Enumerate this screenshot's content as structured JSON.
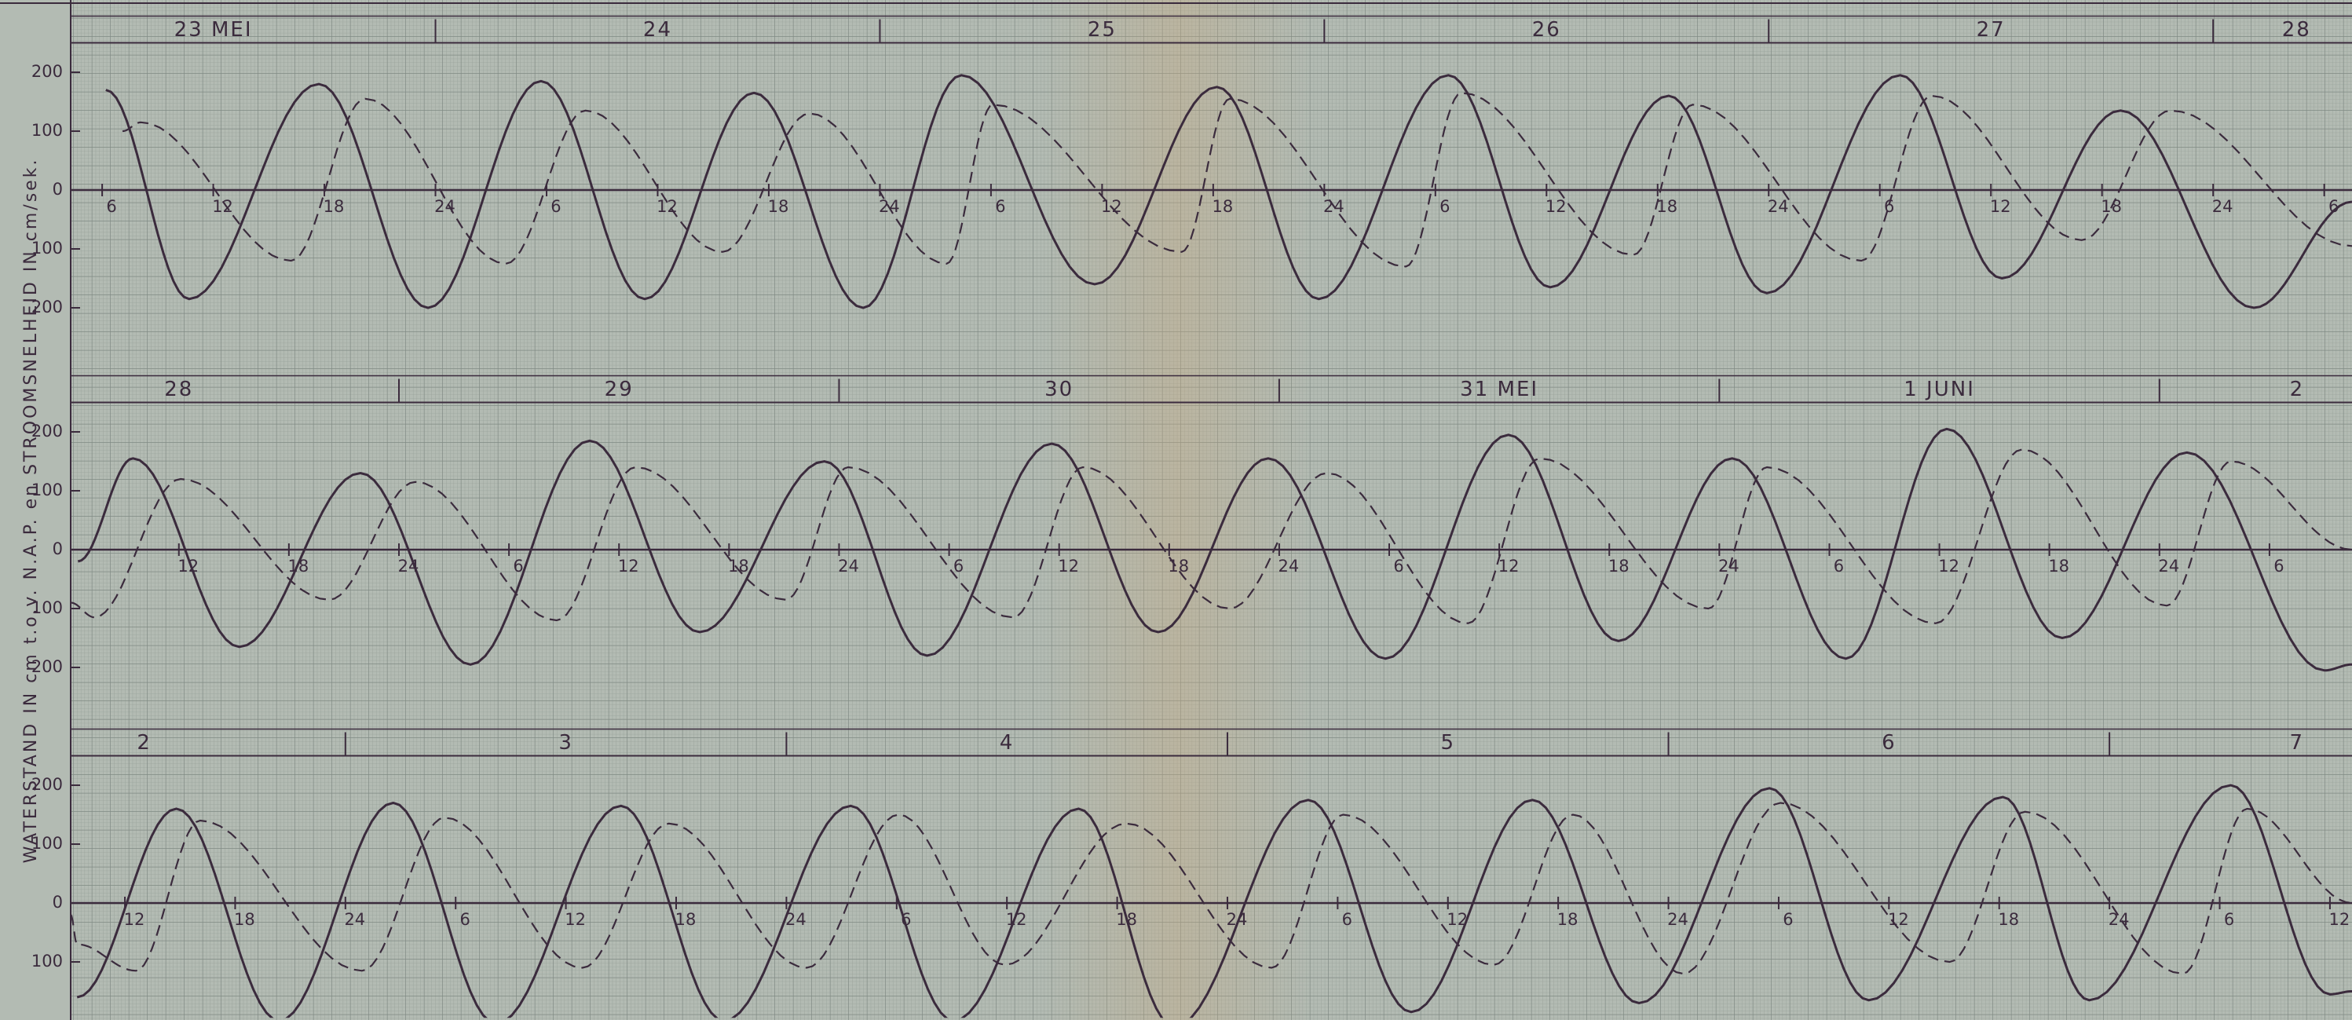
{
  "y_label": "WATERSTAND IN cm t.o.v. N.A.P. en STROOMSNELHEID IN cm/sek.",
  "chart_data": [
    {
      "type": "line",
      "color": "#3b2b3d",
      "grid": true,
      "days": [
        "23 MEI",
        "24",
        "25",
        "26",
        "27",
        "28"
      ],
      "xlim": [
        4.3,
        127.5
      ],
      "ylim": [
        -250,
        250
      ],
      "yticks": [
        {
          "value": -200,
          "label": "200"
        },
        {
          "value": -100,
          "label": "100"
        },
        0,
        100,
        200
      ],
      "xticks": [
        6,
        12,
        18,
        24,
        {
          "value": 30,
          "label": "6"
        },
        {
          "value": 36,
          "label": "12"
        },
        {
          "value": 42,
          "label": "18"
        },
        {
          "value": 48,
          "label": "24"
        },
        {
          "value": 54,
          "label": "6"
        },
        {
          "value": 60,
          "label": "12"
        },
        {
          "value": 66,
          "label": "18"
        },
        {
          "value": 72,
          "label": "24"
        },
        {
          "value": 78,
          "label": "6"
        },
        {
          "value": 84,
          "label": "12"
        },
        {
          "value": 90,
          "label": "18"
        },
        {
          "value": 96,
          "label": "24"
        },
        {
          "value": 102,
          "label": "6"
        },
        {
          "value": 108,
          "label": "12"
        },
        {
          "value": 114,
          "label": "18"
        },
        {
          "value": 120,
          "label": "24"
        },
        {
          "value": 126,
          "label": "6"
        }
      ],
      "series": [
        {
          "style": "solid",
          "x": [
            6.2,
            10.7,
            17.7,
            23.6,
            29.7,
            35.3,
            41.2,
            47.1,
            52.4,
            59.6,
            66.2,
            71.7,
            78.7,
            84.2,
            90.6,
            95.9,
            103.1,
            108.6,
            115,
            122.2,
            127.5
          ],
          "values": [
            170,
            -185,
            180,
            -200,
            185,
            -185,
            165,
            -200,
            195,
            -160,
            175,
            -185,
            195,
            -165,
            160,
            -175,
            195,
            -150,
            135,
            -200,
            -20
          ]
        },
        {
          "style": "dashed",
          "x": [
            7.1,
            8.1,
            16.2,
            20.2,
            27.8,
            32.1,
            39.5,
            44.2,
            51.6,
            54.1,
            64.3,
            66.9,
            76.4,
            79.4,
            88.7,
            91.9,
            101,
            104.8,
            112.9,
            117.7,
            127.5
          ],
          "values": [
            100,
            115,
            -120,
            155,
            -125,
            135,
            -105,
            130,
            -125,
            145,
            -105,
            155,
            -130,
            165,
            -110,
            145,
            -120,
            160,
            -85,
            135,
            -95
          ]
        }
      ]
    },
    {
      "type": "line",
      "color": "#3b2b3d",
      "grid": true,
      "days": [
        "28",
        "29",
        "30",
        "31 MEI",
        "1 JUNI",
        "2"
      ],
      "xlim": [
        6.1,
        130.5
      ],
      "ylim": [
        -250,
        250
      ],
      "yticks": [
        {
          "value": -200,
          "label": "200"
        },
        {
          "value": -100,
          "label": "100"
        },
        0,
        100,
        200
      ],
      "xticks": [
        12,
        18,
        24,
        {
          "value": 30,
          "label": "6"
        },
        {
          "value": 36,
          "label": "12"
        },
        {
          "value": 42,
          "label": "18"
        },
        {
          "value": 48,
          "label": "24"
        },
        {
          "value": 54,
          "label": "6"
        },
        {
          "value": 60,
          "label": "12"
        },
        {
          "value": 66,
          "label": "18"
        },
        {
          "value": 72,
          "label": "24"
        },
        {
          "value": 78,
          "label": "6"
        },
        {
          "value": 84,
          "label": "12"
        },
        {
          "value": 90,
          "label": "18"
        },
        {
          "value": 96,
          "label": "24"
        },
        {
          "value": 102,
          "label": "6"
        },
        {
          "value": 108,
          "label": "12"
        },
        {
          "value": 114,
          "label": "18"
        },
        {
          "value": 120,
          "label": "24"
        },
        {
          "value": 126,
          "label": "6"
        }
      ],
      "series": [
        {
          "style": "solid",
          "x": [
            6.5,
            9.5,
            15.3,
            21.9,
            27.9,
            34.4,
            40.4,
            47.2,
            52.8,
            59.6,
            65.4,
            71.4,
            77.8,
            84.5,
            90.5,
            96.7,
            102.9,
            108.4,
            114.7,
            121.5,
            129,
            130.5
          ],
          "values": [
            -20,
            155,
            -165,
            130,
            -195,
            185,
            -140,
            150,
            -180,
            180,
            -140,
            155,
            -185,
            195,
            -155,
            155,
            -185,
            205,
            -150,
            165,
            -205,
            -195
          ]
        },
        {
          "style": "dashed",
          "x": [
            6.1,
            7.4,
            12.1,
            20.2,
            24.9,
            32.6,
            36.9,
            45.1,
            48.5,
            57.5,
            61.3,
            69.3,
            74.6,
            82.3,
            86.2,
            95.4,
            98.6,
            107.8,
            112.5,
            120.4,
            123.9,
            130.5
          ],
          "values": [
            -90,
            -115,
            120,
            -85,
            115,
            -120,
            140,
            -85,
            140,
            -115,
            140,
            -100,
            130,
            -125,
            155,
            -100,
            140,
            -125,
            170,
            -95,
            150,
            0
          ]
        }
      ]
    },
    {
      "type": "line",
      "color": "#3b2b3d",
      "grid": true,
      "days": [
        "2",
        "3",
        "4",
        "5",
        "6",
        "7"
      ],
      "xlim": [
        9.05,
        133.2
      ],
      "ylim": [
        -195,
        250
      ],
      "yticks": [
        {
          "value": -100,
          "label": "100"
        },
        0,
        100,
        200
      ],
      "xticks": [
        12,
        18,
        24,
        {
          "value": 30,
          "label": "6"
        },
        {
          "value": 36,
          "label": "12"
        },
        {
          "value": 42,
          "label": "18"
        },
        {
          "value": 48,
          "label": "24"
        },
        {
          "value": 54,
          "label": "6"
        },
        {
          "value": 60,
          "label": "12"
        },
        {
          "value": 66,
          "label": "18"
        },
        {
          "value": 72,
          "label": "24"
        },
        {
          "value": 78,
          "label": "6"
        },
        {
          "value": 84,
          "label": "12"
        },
        {
          "value": 90,
          "label": "18"
        },
        {
          "value": 96,
          "label": "24"
        },
        {
          "value": 102,
          "label": "6"
        },
        {
          "value": 108,
          "label": "12"
        },
        {
          "value": 114,
          "label": "18"
        },
        {
          "value": 120,
          "label": "24"
        },
        {
          "value": 126,
          "label": "6"
        },
        {
          "value": 132,
          "label": "12"
        }
      ],
      "series": [
        {
          "style": "solid",
          "x": [
            9.4,
            14.8,
            20.4,
            26.6,
            32.2,
            39,
            44.6,
            51.5,
            57.1,
            63.9,
            69.1,
            76.4,
            82,
            88.6,
            94.4,
            101.5,
            106.9,
            114.2,
            118.9,
            126.6,
            132,
            133.2
          ],
          "values": [
            -160,
            160,
            -200,
            170,
            -205,
            165,
            -200,
            165,
            -200,
            160,
            -210,
            175,
            -185,
            175,
            -170,
            195,
            -165,
            180,
            -165,
            200,
            -155,
            -150
          ]
        },
        {
          "style": "dashed",
          "x": [
            9.05,
            9.4,
            12.6,
            16.1,
            24.9,
            29.4,
            36.9,
            41.6,
            49.1,
            54.1,
            59.9,
            66.5,
            74.4,
            78.3,
            86.5,
            90.8,
            96.8,
            102.1,
            111.3,
            115.4,
            124,
            127.5,
            133.2
          ],
          "values": [
            -20,
            -70,
            -115,
            140,
            -115,
            145,
            -110,
            135,
            -110,
            150,
            -105,
            135,
            -110,
            150,
            -105,
            150,
            -120,
            170,
            -100,
            155,
            -120,
            160,
            0
          ]
        }
      ]
    }
  ]
}
